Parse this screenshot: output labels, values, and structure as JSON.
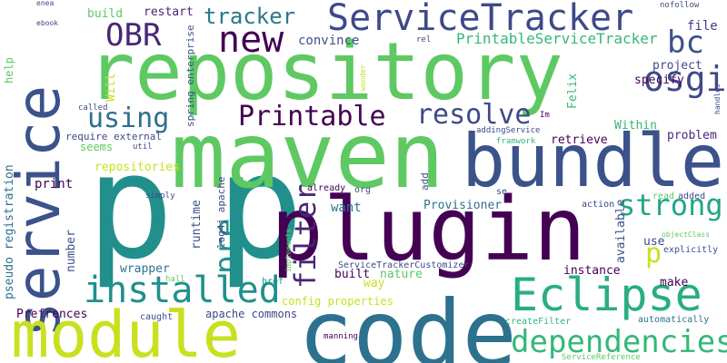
{
  "palette": {
    "background": "#ffffff",
    "dark_purple": "#440154",
    "indigo": "#3b528b",
    "teal": "#21908c",
    "light_green": "#5ec962",
    "yellow": "#c8e020"
  },
  "words": {
    "repository": "repository",
    "p_big": "p",
    "p_big2": "p",
    "maven": "maven",
    "plugin": "plugin",
    "code": "code",
    "service": "service",
    "bundle": "bundle",
    "module": "module",
    "eclipse": "Eclipse",
    "servicetracker": "ServiceTracker",
    "new": "new",
    "obr": "OBR",
    "bc": "bc",
    "osgi": "osgi",
    "printable": "Printable",
    "resolve": "resolve",
    "using": "using",
    "installed": "installed",
    "strong": "strong",
    "filter": "filter",
    "pre": "pre",
    "p_small": "p",
    "dependencies": "dependencies",
    "tracker": "tracker",
    "printableservicetracker": "PrintableServiceTracker",
    "convince": "convince",
    "build": "build",
    "restart": "restart",
    "file": "file",
    "project": "project",
    "specify": "specify",
    "within": "Within",
    "problem": "problem",
    "retrieve": "retrieve",
    "repositories": "repositories",
    "print": "print",
    "provisioner": "Provisioner",
    "want": "want",
    "available": "available",
    "use": "use",
    "instance": "instance",
    "make": "make",
    "way": "way",
    "nature": "nature",
    "built": "built",
    "wrapper": "wrapper",
    "runtime": "runtime",
    "number": "number",
    "prefrences": "Prefrences",
    "apache_commons": "apache commons",
    "config_properties": "config properties",
    "pseudo_registration": "pseudo registration",
    "require_external": "require external",
    "seems": "seems",
    "will": "Will",
    "felix": "Felix",
    "help": "help",
    "spring_enterprise": "spring enterprise",
    "log4j_apache": "log4j apache",
    "servicetrackercustomizer": "ServiceTrackerCustomizer",
    "add": "add",
    "already": "already",
    "org": "org",
    "se": "se",
    "read": "read",
    "added": "added",
    "action": "action",
    "objectclass": "objectClass",
    "explicitly": "explicitly",
    "automatically": "automatically",
    "createfilter": "createFilter",
    "servicereference": "ServiceReference",
    "manning": "manning",
    "caught": "caught",
    "hall": "hall",
    "href": "href",
    "implements": "implements",
    "simply": "simply",
    "util": "util",
    "called": "called",
    "addingservice": "addingService",
    "framwork": "framwork",
    "im": "Im",
    "handles": "handles",
    "nofollow": "nofollow",
    "rel": "rel",
    "wonder": "wonder",
    "ebook": "ebook",
    "enea": "enea"
  }
}
